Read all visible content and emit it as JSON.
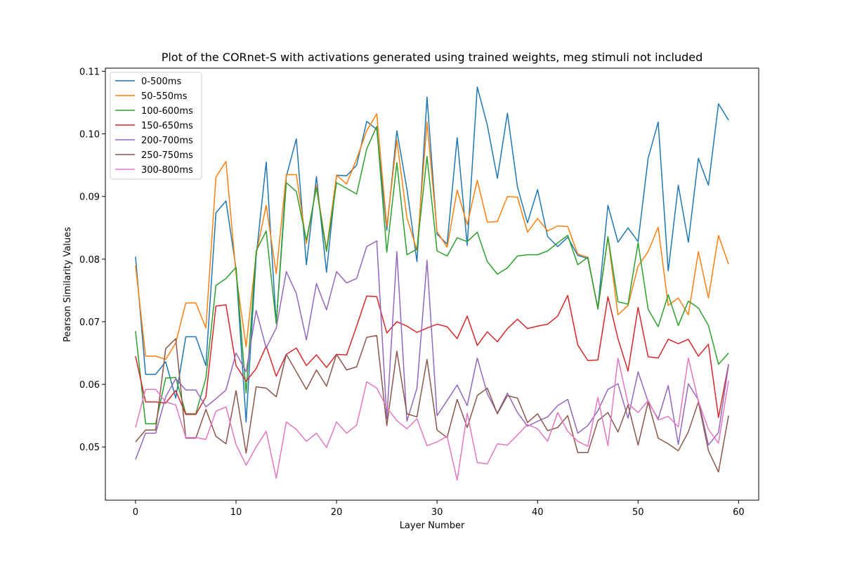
{
  "chart_data": {
    "type": "line",
    "title": "Plot of the CORnet-S with activations generated using trained weights, meg stimuli not included",
    "xlabel": "Layer Number",
    "ylabel": "Pearson Similarity Values",
    "xlim": [
      -3,
      62
    ],
    "ylim": [
      0.0415,
      0.1105
    ],
    "xticks": [
      0,
      10,
      20,
      30,
      40,
      50,
      60
    ],
    "yticks": [
      0.05,
      0.06,
      0.07,
      0.08,
      0.09,
      0.1,
      0.11
    ],
    "ytick_labels": [
      "0.05",
      "0.06",
      "0.07",
      "0.08",
      "0.09",
      "0.10",
      "0.11"
    ],
    "legend_position": "top-left",
    "x": [
      0,
      1,
      2,
      3,
      4,
      5,
      6,
      7,
      8,
      9,
      10,
      11,
      12,
      13,
      14,
      15,
      16,
      17,
      18,
      19,
      20,
      21,
      22,
      23,
      24,
      25,
      26,
      27,
      28,
      29,
      30,
      31,
      32,
      33,
      34,
      35,
      36,
      37,
      38,
      39,
      40,
      41,
      42,
      43,
      44,
      45,
      46,
      47,
      48,
      49,
      50,
      51,
      52,
      53,
      54,
      55,
      56,
      57,
      58,
      59
    ],
    "series": [
      {
        "name": "0-500ms",
        "color": "#1f77b4",
        "values": [
          0.0804,
          0.0616,
          0.0616,
          0.0636,
          0.0578,
          0.0676,
          0.0676,
          0.063,
          0.0874,
          0.0893,
          0.0785,
          0.054,
          0.0804,
          0.0955,
          0.0697,
          0.0932,
          0.0992,
          0.0791,
          0.0932,
          0.0779,
          0.0934,
          0.0933,
          0.095,
          0.102,
          0.1007,
          0.0846,
          0.1005,
          0.0912,
          0.0796,
          0.1059,
          0.084,
          0.0824,
          0.0994,
          0.0822,
          0.1075,
          0.1014,
          0.0929,
          0.1033,
          0.0915,
          0.0858,
          0.0911,
          0.0836,
          0.082,
          0.0835,
          0.0806,
          0.0801,
          0.0722,
          0.0886,
          0.0827,
          0.085,
          0.0828,
          0.0961,
          0.1019,
          0.0781,
          0.0918,
          0.0827,
          0.0961,
          0.0918,
          0.1048,
          0.1022
        ]
      },
      {
        "name": "50-550ms",
        "color": "#ff7f0e",
        "values": [
          0.079,
          0.0645,
          0.0645,
          0.064,
          0.0666,
          0.073,
          0.073,
          0.069,
          0.0931,
          0.0956,
          0.0776,
          0.066,
          0.0808,
          0.0886,
          0.0777,
          0.0935,
          0.0935,
          0.0825,
          0.0918,
          0.0815,
          0.0934,
          0.092,
          0.096,
          0.1005,
          0.1032,
          0.0852,
          0.099,
          0.0866,
          0.0814,
          0.1019,
          0.0844,
          0.0819,
          0.091,
          0.0855,
          0.0926,
          0.0859,
          0.086,
          0.09,
          0.0899,
          0.0843,
          0.0865,
          0.0845,
          0.0853,
          0.0852,
          0.0808,
          0.0803,
          0.0721,
          0.0835,
          0.0711,
          0.0726,
          0.0789,
          0.0812,
          0.0851,
          0.0726,
          0.0738,
          0.0711,
          0.0812,
          0.0738,
          0.0838,
          0.0792
        ]
      },
      {
        "name": "100-600ms",
        "color": "#2ca02c",
        "values": [
          0.0685,
          0.0537,
          0.0537,
          0.061,
          0.0611,
          0.0553,
          0.0553,
          0.061,
          0.0758,
          0.0769,
          0.0787,
          0.0586,
          0.0813,
          0.0845,
          0.0697,
          0.0922,
          0.0908,
          0.083,
          0.0914,
          0.0812,
          0.0922,
          0.0913,
          0.0904,
          0.0976,
          0.1012,
          0.0811,
          0.0954,
          0.0807,
          0.0816,
          0.0964,
          0.0813,
          0.0805,
          0.0834,
          0.0828,
          0.0843,
          0.0796,
          0.0776,
          0.0786,
          0.0805,
          0.0807,
          0.0807,
          0.0813,
          0.0826,
          0.0838,
          0.0791,
          0.0803,
          0.072,
          0.0836,
          0.0732,
          0.0728,
          0.0826,
          0.072,
          0.0692,
          0.0743,
          0.0694,
          0.0733,
          0.0722,
          0.0694,
          0.0632,
          0.065
        ]
      },
      {
        "name": "150-650ms",
        "color": "#d62728",
        "values": [
          0.0645,
          0.0572,
          0.0572,
          0.057,
          0.059,
          0.0552,
          0.0552,
          0.058,
          0.0725,
          0.0727,
          0.063,
          0.0605,
          0.0625,
          0.0661,
          0.0613,
          0.0648,
          0.0658,
          0.063,
          0.0647,
          0.0627,
          0.0648,
          0.0647,
          0.0693,
          0.0741,
          0.074,
          0.0682,
          0.07,
          0.0693,
          0.0683,
          0.069,
          0.0696,
          0.0692,
          0.0673,
          0.0709,
          0.0662,
          0.0684,
          0.0668,
          0.0689,
          0.0704,
          0.0689,
          0.0693,
          0.0696,
          0.0709,
          0.0742,
          0.0663,
          0.0638,
          0.0639,
          0.074,
          0.0673,
          0.0621,
          0.0723,
          0.0644,
          0.0642,
          0.0672,
          0.0665,
          0.0672,
          0.0645,
          0.0664,
          0.0547,
          0.0632
        ]
      },
      {
        "name": "200-700ms",
        "color": "#9467bd",
        "values": [
          0.048,
          0.0522,
          0.0522,
          0.058,
          0.0609,
          0.0591,
          0.0591,
          0.0564,
          0.0577,
          0.0591,
          0.065,
          0.062,
          0.0718,
          0.0658,
          0.069,
          0.078,
          0.0745,
          0.0671,
          0.0761,
          0.0719,
          0.078,
          0.0762,
          0.0769,
          0.082,
          0.0829,
          0.0545,
          0.0812,
          0.0541,
          0.0594,
          0.0798,
          0.055,
          0.0574,
          0.0599,
          0.0566,
          0.0642,
          0.0585,
          0.0554,
          0.0586,
          0.0555,
          0.0533,
          0.0541,
          0.0548,
          0.0566,
          0.0576,
          0.0522,
          0.0534,
          0.0558,
          0.0592,
          0.0601,
          0.0546,
          0.062,
          0.0572,
          0.0545,
          0.0598,
          0.0504,
          0.0601,
          0.0575,
          0.0503,
          0.0523,
          0.0631
        ]
      },
      {
        "name": "250-750ms",
        "color": "#8c564b",
        "values": [
          0.0508,
          0.0527,
          0.0527,
          0.0657,
          0.0673,
          0.0514,
          0.0514,
          0.056,
          0.0517,
          0.0505,
          0.059,
          0.049,
          0.0596,
          0.0594,
          0.058,
          0.0648,
          0.062,
          0.0592,
          0.0623,
          0.0597,
          0.0648,
          0.0623,
          0.0628,
          0.0675,
          0.0678,
          0.0534,
          0.0653,
          0.0553,
          0.0548,
          0.064,
          0.0527,
          0.0515,
          0.0576,
          0.0531,
          0.0582,
          0.0594,
          0.0553,
          0.0582,
          0.0578,
          0.0539,
          0.0553,
          0.0526,
          0.0531,
          0.055,
          0.0491,
          0.0491,
          0.0542,
          0.0555,
          0.0524,
          0.0567,
          0.0503,
          0.0572,
          0.0514,
          0.0505,
          0.0494,
          0.0524,
          0.0572,
          0.0494,
          0.046,
          0.055
        ]
      },
      {
        "name": "300-800ms",
        "color": "#e377c2",
        "values": [
          0.0531,
          0.0592,
          0.0592,
          0.0572,
          0.0567,
          0.0515,
          0.0515,
          0.0512,
          0.0557,
          0.0564,
          0.0504,
          0.0471,
          0.05,
          0.0525,
          0.045,
          0.054,
          0.0528,
          0.0509,
          0.0522,
          0.0499,
          0.054,
          0.0522,
          0.0535,
          0.0604,
          0.0594,
          0.0563,
          0.0542,
          0.0529,
          0.0545,
          0.0502,
          0.0508,
          0.0517,
          0.0447,
          0.0554,
          0.0475,
          0.0473,
          0.0505,
          0.0503,
          0.0519,
          0.0536,
          0.0529,
          0.0509,
          0.0555,
          0.0525,
          0.0509,
          0.0501,
          0.0579,
          0.0502,
          0.0642,
          0.0569,
          0.0555,
          0.0574,
          0.0543,
          0.0549,
          0.0532,
          0.0642,
          0.0573,
          0.0528,
          0.0506,
          0.0606
        ]
      }
    ]
  }
}
